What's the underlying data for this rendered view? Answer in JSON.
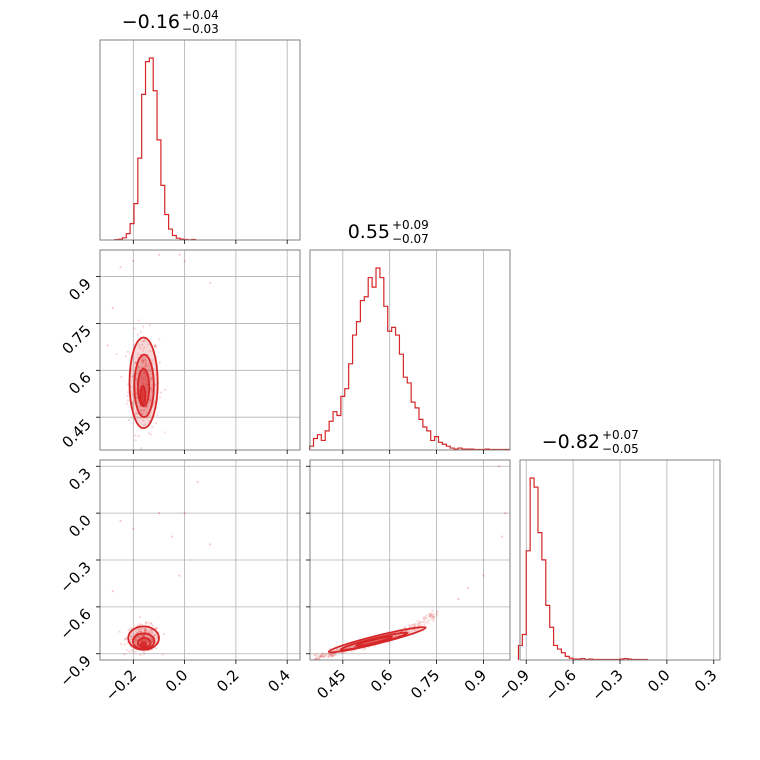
{
  "colors": {
    "accent": "#d62728",
    "grid": "#b0b0b0",
    "frame": "#808080"
  },
  "chart_data": [
    {
      "type": "histogram",
      "panel": "diag-1",
      "parameter_index": 1,
      "title": {
        "main": "−0.16",
        "plus": "+0.04",
        "minus": "−0.03"
      },
      "xlim": [
        -0.33,
        0.45
      ],
      "xticks": [
        -0.2,
        0.0,
        0.2,
        0.4
      ],
      "bin_width": 0.015,
      "x": [
        -0.265,
        -0.25,
        -0.235,
        -0.22,
        -0.205,
        -0.19,
        -0.175,
        -0.16,
        -0.145,
        -0.13,
        -0.115,
        -0.1,
        -0.085,
        -0.07,
        -0.055,
        -0.04,
        -0.025,
        -0.01,
        0.005,
        0.02,
        0.035
      ],
      "values": [
        0.2,
        0.4,
        1.2,
        3.5,
        9,
        20,
        45,
        80,
        98,
        100,
        82,
        55,
        30,
        14,
        6,
        2.5,
        1,
        0.5,
        0.3,
        0.1,
        0.3
      ]
    },
    {
      "type": "histogram",
      "panel": "diag-2",
      "parameter_index": 2,
      "title": {
        "main": "0.55",
        "plus": "+0.09",
        "minus": "−0.07"
      },
      "xlim": [
        0.345,
        0.985
      ],
      "xticks": [
        0.45,
        0.6,
        0.75,
        0.9
      ],
      "bin_width": 0.0125,
      "x": [
        0.35,
        0.3625,
        0.375,
        0.3875,
        0.4,
        0.4125,
        0.425,
        0.4375,
        0.45,
        0.4625,
        0.475,
        0.4875,
        0.5,
        0.5125,
        0.525,
        0.5375,
        0.55,
        0.5625,
        0.575,
        0.5875,
        0.6,
        0.6125,
        0.625,
        0.6375,
        0.65,
        0.6625,
        0.675,
        0.6875,
        0.7,
        0.7125,
        0.725,
        0.7375,
        0.75,
        0.7625,
        0.775,
        0.7875,
        0.8,
        0.8125,
        0.825,
        0.8375,
        0.85,
        0.8625,
        0.875,
        0.8875,
        0.9,
        0.9125,
        0.925,
        0.9375,
        0.95,
        0.9625,
        0.975
      ],
      "values": [
        2,
        6,
        8,
        5,
        10,
        15,
        20,
        18,
        28,
        32,
        45,
        60,
        67,
        78,
        80,
        90,
        85,
        95,
        90,
        75,
        62,
        64,
        60,
        50,
        38,
        35,
        25,
        22,
        16,
        12,
        10,
        5,
        7,
        4,
        3,
        2,
        1,
        0.5,
        1,
        0.5,
        0.5,
        0.5,
        0.3,
        0.3,
        0.3,
        0.5,
        0.3,
        0.3,
        0.3,
        0.3,
        0.3
      ]
    },
    {
      "type": "histogram",
      "panel": "diag-3",
      "parameter_index": 3,
      "title": {
        "main": "−0.82",
        "plus": "+0.07",
        "minus": "−0.05"
      },
      "xlim": [
        -0.94,
        0.34
      ],
      "xticks": [
        -0.9,
        -0.6,
        -0.3,
        0.0,
        0.3
      ],
      "bin_width": 0.025,
      "x": [
        -0.9375,
        -0.9125,
        -0.8875,
        -0.8625,
        -0.8375,
        -0.8125,
        -0.7875,
        -0.7625,
        -0.7375,
        -0.7125,
        -0.6875,
        -0.6625,
        -0.6375,
        -0.6125,
        -0.5875,
        -0.5625,
        -0.5375,
        -0.5125,
        -0.4875,
        -0.4625,
        -0.4375,
        -0.4125,
        -0.3875,
        -0.3625,
        -0.3375,
        -0.3125,
        -0.2875,
        -0.2625,
        -0.2375,
        -0.2125,
        -0.1875,
        -0.1625,
        -0.1375
      ],
      "values": [
        8,
        14,
        60,
        100,
        95,
        70,
        55,
        30,
        18,
        8,
        6,
        4,
        2,
        1,
        0.5,
        0.5,
        0.8,
        0.3,
        0.5,
        0.3,
        0.3,
        0.3,
        0.3,
        0.3,
        0.3,
        0.3,
        0.5,
        0.8,
        0.5,
        0.3,
        0.3,
        0.3,
        0.3
      ]
    },
    {
      "type": "scatter",
      "panel": "pair-2-1",
      "x_parameter": 1,
      "y_parameter": 2,
      "xlim": [
        -0.33,
        0.45
      ],
      "ylim": [
        0.345,
        0.985
      ],
      "xticks": [
        -0.2,
        0.0,
        0.2,
        0.4
      ],
      "yticks": [
        0.45,
        0.6,
        0.75,
        0.9
      ],
      "center": [
        -0.16,
        0.55
      ],
      "contours": [
        {
          "level": "outer",
          "center": [
            -0.16,
            0.56
          ],
          "semi_axes": [
            0.055,
            0.145
          ]
        },
        {
          "level": "middle",
          "center": [
            -0.158,
            0.55
          ],
          "semi_axes": [
            0.038,
            0.1
          ]
        },
        {
          "level": "inner",
          "center": [
            -0.16,
            0.545
          ],
          "semi_axes": [
            0.022,
            0.06
          ]
        },
        {
          "level": "core",
          "center": [
            -0.163,
            0.52
          ],
          "semi_axes": [
            0.01,
            0.03
          ]
        }
      ],
      "outliers": [
        [
          -0.25,
          0.93
        ],
        [
          -0.2,
          0.95
        ],
        [
          -0.1,
          0.97
        ],
        [
          -0.02,
          0.97
        ],
        [
          0.0,
          0.95
        ],
        [
          0.1,
          0.88
        ],
        [
          -0.28,
          0.8
        ],
        [
          -0.3,
          0.68
        ]
      ]
    },
    {
      "type": "scatter",
      "panel": "pair-3-1",
      "x_parameter": 1,
      "y_parameter": 3,
      "xlim": [
        -0.33,
        0.45
      ],
      "ylim": [
        -0.94,
        0.34
      ],
      "xticks": [
        -0.2,
        0.0,
        0.2,
        0.4
      ],
      "yticks": [
        -0.9,
        -0.6,
        -0.3,
        0.0,
        0.3
      ],
      "center": [
        -0.16,
        -0.82
      ],
      "contours": [
        {
          "level": "outer",
          "center": [
            -0.16,
            -0.8
          ],
          "semi_axes": [
            0.06,
            0.075
          ]
        },
        {
          "level": "middle",
          "center": [
            -0.16,
            -0.82
          ],
          "semi_axes": [
            0.042,
            0.05
          ]
        },
        {
          "level": "inner",
          "center": [
            -0.158,
            -0.83
          ],
          "semi_axes": [
            0.025,
            0.03
          ]
        },
        {
          "level": "core",
          "center": [
            -0.16,
            -0.84
          ],
          "semi_axes": [
            0.01,
            0.012
          ]
        }
      ],
      "outliers": [
        [
          -0.2,
          -0.1
        ],
        [
          -0.25,
          -0.05
        ],
        [
          -0.1,
          0.0
        ],
        [
          0.0,
          0.0
        ],
        [
          -0.05,
          -0.15
        ],
        [
          0.1,
          -0.2
        ],
        [
          -0.28,
          -0.5
        ],
        [
          0.05,
          0.2
        ],
        [
          -0.02,
          -0.4
        ]
      ]
    },
    {
      "type": "scatter",
      "panel": "pair-3-2",
      "x_parameter": 2,
      "y_parameter": 3,
      "xlim": [
        0.345,
        0.985
      ],
      "ylim": [
        -0.94,
        0.34
      ],
      "xticks": [
        0.45,
        0.6,
        0.75,
        0.9
      ],
      "yticks": [
        -0.9,
        -0.6,
        -0.3,
        0.0,
        0.3
      ],
      "center": [
        0.55,
        -0.82
      ],
      "trend": [
        [
          0.36,
          -0.93
        ],
        [
          0.45,
          -0.88
        ],
        [
          0.55,
          -0.82
        ],
        [
          0.65,
          -0.76
        ],
        [
          0.75,
          -0.64
        ]
      ],
      "contours": [
        {
          "level": "outer",
          "center": [
            0.56,
            -0.81
          ],
          "semi_axes": [
            0.16,
            0.025
          ],
          "angle_deg": -14
        },
        {
          "level": "middle",
          "center": [
            0.55,
            -0.82
          ],
          "semi_axes": [
            0.11,
            0.017
          ],
          "angle_deg": -14
        },
        {
          "level": "inner",
          "center": [
            0.55,
            -0.82
          ],
          "semi_axes": [
            0.06,
            0.01
          ],
          "angle_deg": -14
        }
      ],
      "outliers": [
        [
          0.97,
          0.0
        ],
        [
          0.96,
          -0.15
        ],
        [
          0.9,
          -0.4
        ],
        [
          0.82,
          -0.55
        ],
        [
          0.95,
          0.3
        ],
        [
          0.85,
          -0.48
        ]
      ]
    }
  ]
}
